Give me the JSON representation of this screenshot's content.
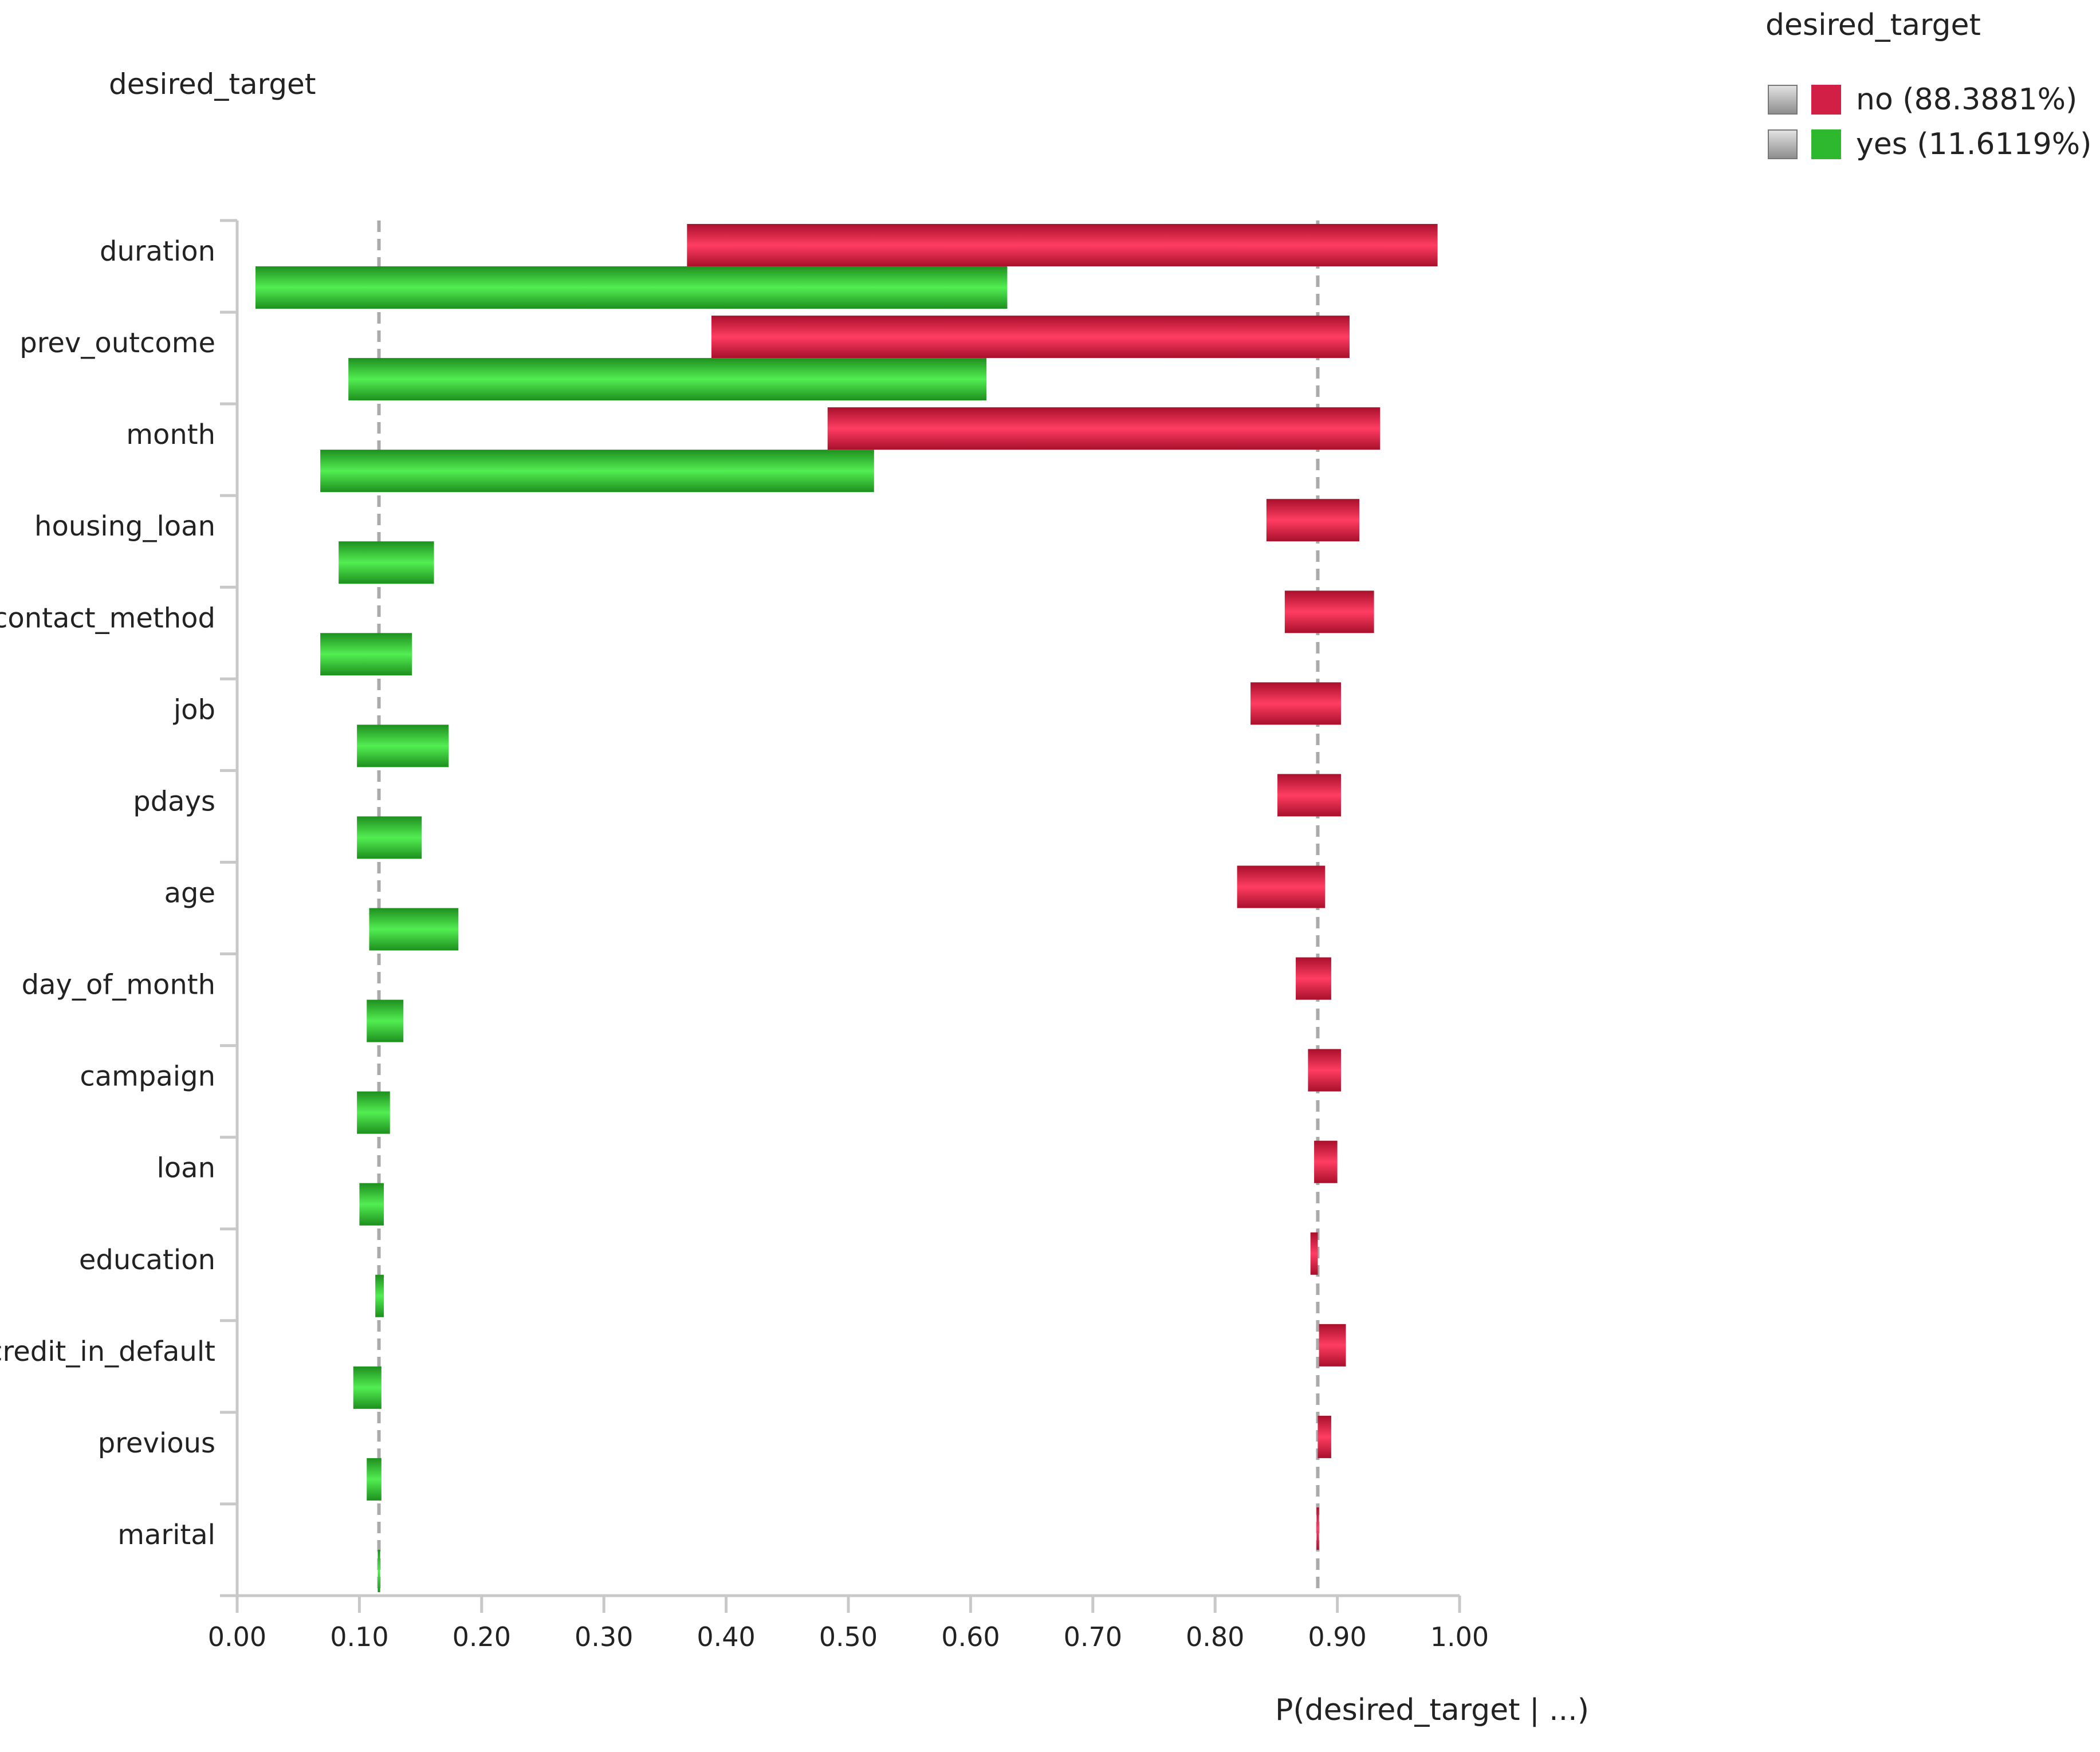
{
  "chart_data": {
    "type": "bar",
    "orientation": "horizontal",
    "style": "floating-range",
    "title": "desired_target",
    "xlabel": "P(desired_target | ...)",
    "ylabel": "",
    "xlim": [
      0,
      1
    ],
    "xticks": [
      "0.00",
      "0.10",
      "0.20",
      "0.30",
      "0.40",
      "0.50",
      "0.60",
      "0.70",
      "0.80",
      "0.90",
      "1.00"
    ],
    "grid": false,
    "legend": {
      "title": "desired_target",
      "position": "top-right",
      "entries": [
        {
          "label": "no (88.3881%)",
          "color": "#d21f45"
        },
        {
          "label": "yes (11.6119%)",
          "color": "#2db82d"
        }
      ]
    },
    "reference_lines": [
      {
        "series": "yes",
        "value": 0.116
      },
      {
        "series": "no",
        "value": 0.884
      }
    ],
    "categories": [
      "duration",
      "prev_outcome",
      "month",
      "housing_loan",
      "contact_method",
      "job",
      "pdays",
      "age",
      "day_of_month",
      "campaign",
      "loan",
      "education",
      "credit_in_default",
      "previous",
      "marital"
    ],
    "series": [
      {
        "name": "no",
        "color": "#d21f45",
        "ranges": [
          [
            0.368,
            0.982
          ],
          [
            0.388,
            0.91
          ],
          [
            0.483,
            0.935
          ],
          [
            0.842,
            0.918
          ],
          [
            0.857,
            0.93
          ],
          [
            0.829,
            0.903
          ],
          [
            0.851,
            0.903
          ],
          [
            0.818,
            0.89
          ],
          [
            0.866,
            0.895
          ],
          [
            0.876,
            0.903
          ],
          [
            0.881,
            0.9
          ],
          [
            0.878,
            0.884
          ],
          [
            0.885,
            0.907
          ],
          [
            0.884,
            0.895
          ],
          [
            0.883,
            0.885
          ]
        ]
      },
      {
        "name": "yes",
        "color": "#2db82d",
        "ranges": [
          [
            0.015,
            0.63
          ],
          [
            0.091,
            0.613
          ],
          [
            0.068,
            0.521
          ],
          [
            0.083,
            0.161
          ],
          [
            0.068,
            0.143
          ],
          [
            0.098,
            0.173
          ],
          [
            0.098,
            0.151
          ],
          [
            0.108,
            0.181
          ],
          [
            0.106,
            0.136
          ],
          [
            0.098,
            0.125
          ],
          [
            0.1,
            0.12
          ],
          [
            0.113,
            0.12
          ],
          [
            0.095,
            0.118
          ],
          [
            0.106,
            0.118
          ],
          [
            0.115,
            0.117
          ]
        ]
      }
    ]
  }
}
